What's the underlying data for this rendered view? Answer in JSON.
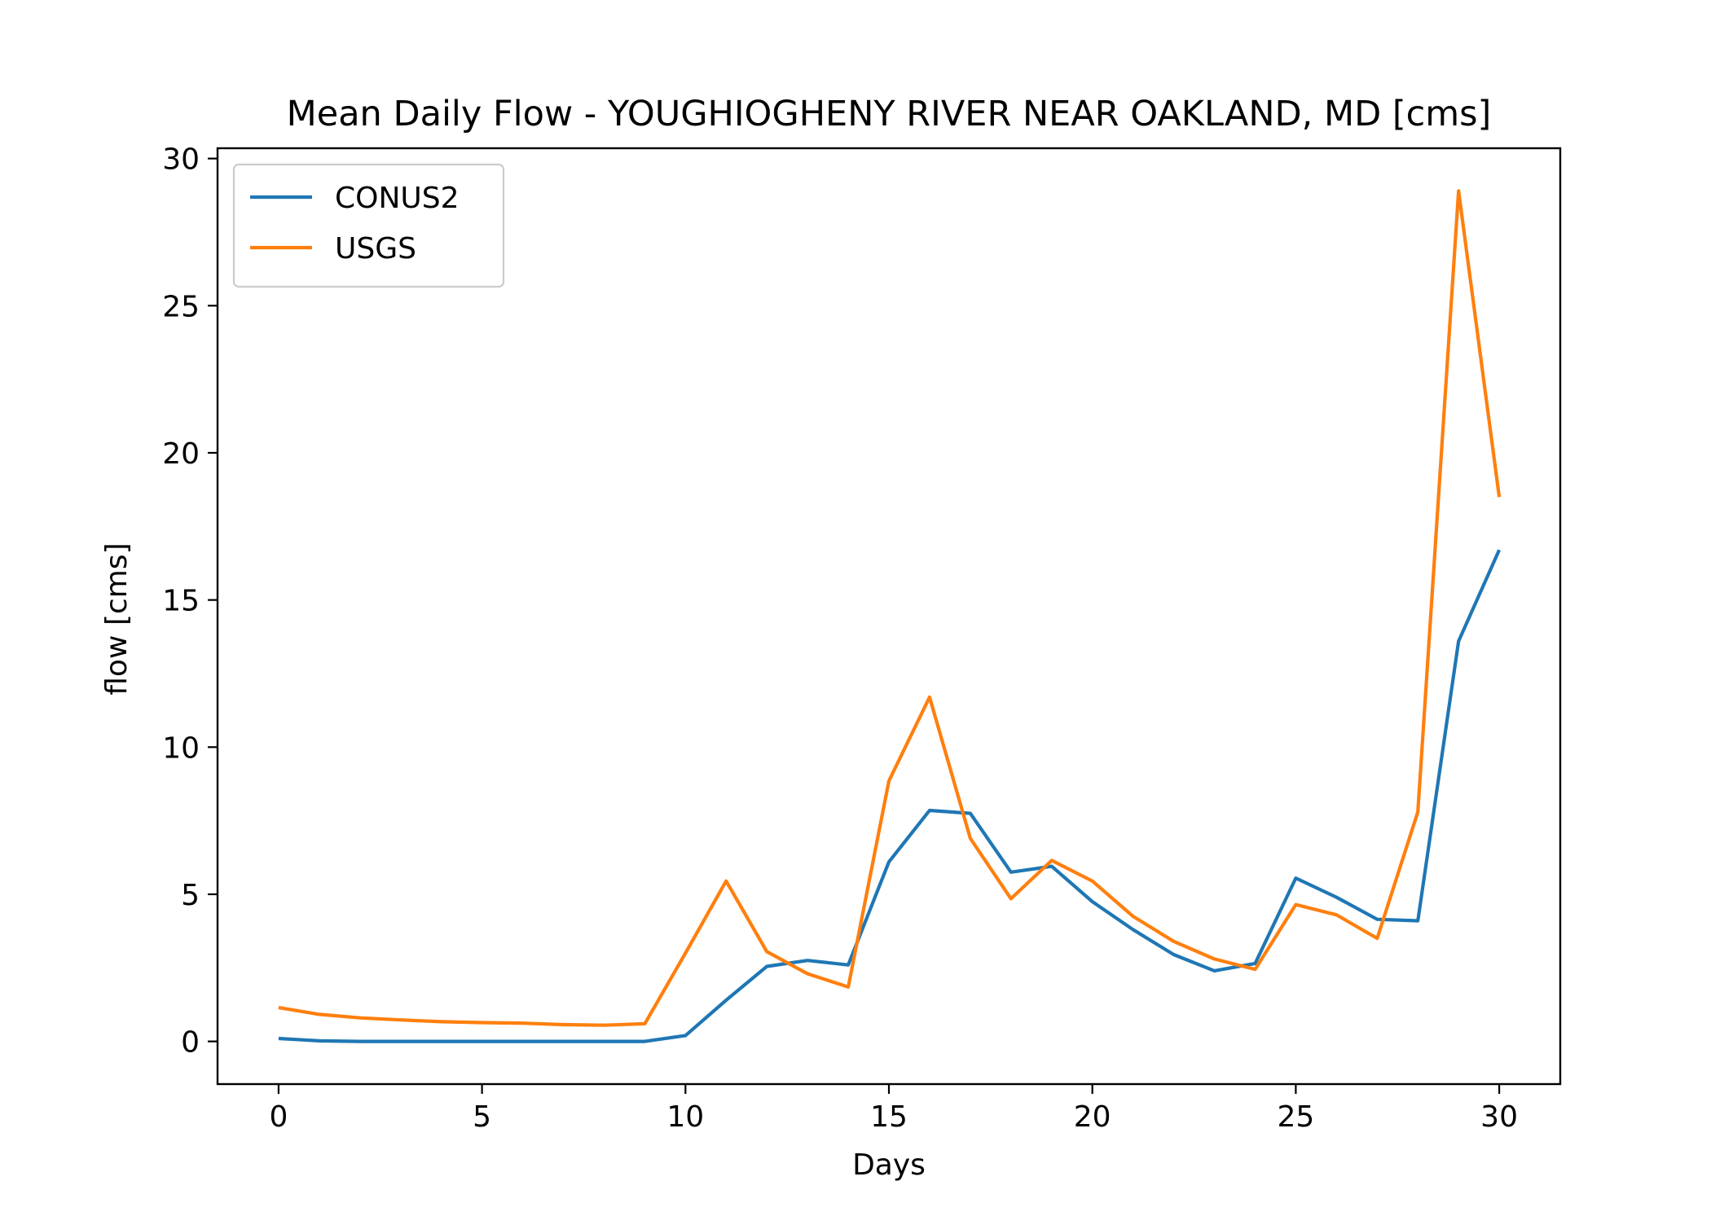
{
  "chart_data": {
    "type": "line",
    "title": "Mean Daily Flow - YOUGHIOGHENY RIVER NEAR OAKLAND, MD [cms]",
    "xlabel": "Days",
    "ylabel": "flow [cms]",
    "xlim": [
      -1.5,
      31.5
    ],
    "ylim": [
      -1.45,
      30.35
    ],
    "xticks": [
      0,
      5,
      10,
      15,
      20,
      25,
      30
    ],
    "yticks": [
      0,
      5,
      10,
      15,
      20,
      25,
      30
    ],
    "grid": false,
    "legend_position": "top-left",
    "x": [
      0,
      1,
      2,
      3,
      4,
      5,
      6,
      7,
      8,
      9,
      10,
      11,
      12,
      13,
      14,
      15,
      16,
      17,
      18,
      19,
      20,
      21,
      22,
      23,
      24,
      25,
      26,
      27,
      28,
      29,
      30
    ],
    "series": [
      {
        "name": "CONUS2",
        "color": "#1f77b4",
        "values": [
          0.1,
          0.02,
          0.0,
          0.0,
          0.0,
          0.0,
          0.0,
          0.0,
          0.0,
          0.0,
          0.2,
          1.4,
          2.55,
          2.75,
          2.6,
          6.1,
          7.85,
          7.75,
          5.75,
          5.95,
          4.75,
          3.8,
          2.95,
          2.4,
          2.65,
          5.55,
          4.9,
          4.15,
          4.1,
          13.6,
          16.7
        ]
      },
      {
        "name": "USGS",
        "color": "#ff7f0e",
        "values": [
          1.15,
          0.92,
          0.8,
          0.73,
          0.67,
          0.64,
          0.62,
          0.57,
          0.55,
          0.6,
          3.0,
          5.45,
          3.05,
          2.3,
          1.85,
          8.85,
          11.7,
          6.9,
          4.85,
          6.15,
          5.45,
          4.25,
          3.4,
          2.8,
          2.45,
          4.65,
          4.3,
          3.5,
          7.8,
          28.9,
          18.5
        ]
      }
    ]
  }
}
